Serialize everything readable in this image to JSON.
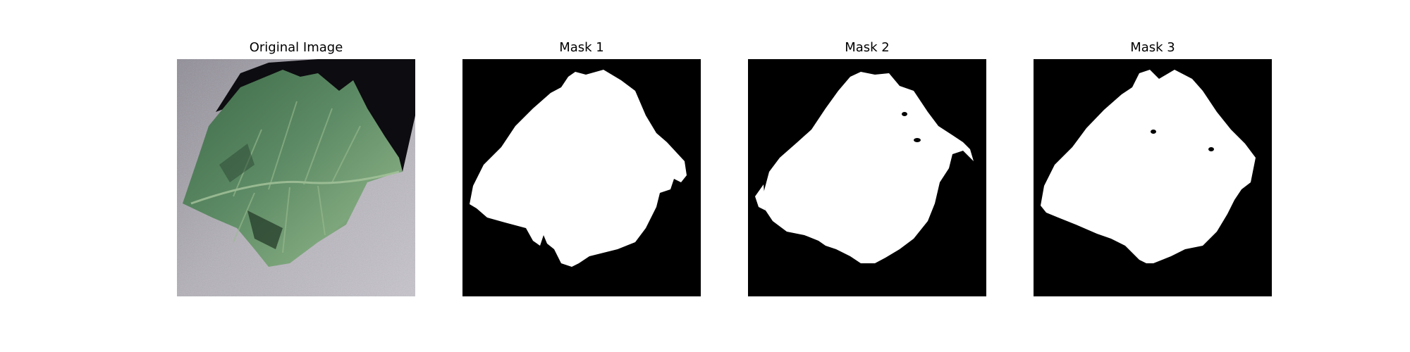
{
  "panels": [
    {
      "title": "Original Image",
      "kind": "photo"
    },
    {
      "title": "Mask 1",
      "kind": "mask"
    },
    {
      "title": "Mask 2",
      "kind": "mask"
    },
    {
      "title": "Mask 3",
      "kind": "mask"
    }
  ],
  "colors": {
    "page_background": "#ffffff",
    "mask_background": "#000000",
    "mask_foreground": "#ffffff",
    "leaf_green": "#4f7a58",
    "leaf_dark": "#233b2a",
    "surface_gray": "#aeaab2"
  }
}
